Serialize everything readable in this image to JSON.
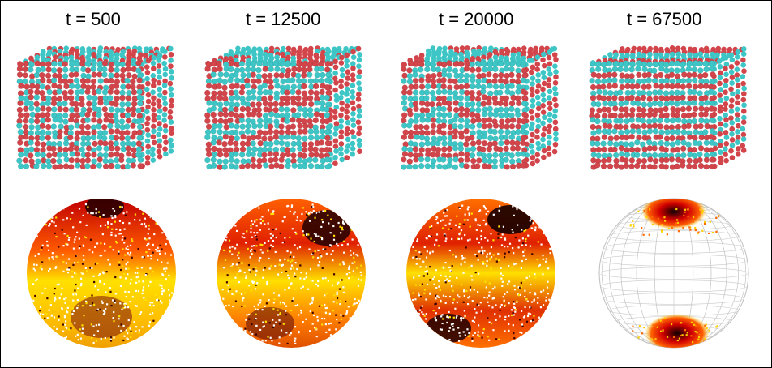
{
  "panels": [
    {
      "time_label": "t = 500",
      "structure": "disordered",
      "cube_icon": "particle-cube-disordered",
      "sphere_icon": "orientation-sphere-broad"
    },
    {
      "time_label": "t = 12500",
      "structure": "early-stripes",
      "cube_icon": "particle-cube-early-stripes",
      "sphere_icon": "orientation-sphere-emerging"
    },
    {
      "time_label": "t = 20000",
      "structure": "curved-stripes",
      "cube_icon": "particle-cube-curved-stripes",
      "sphere_icon": "orientation-sphere-focusing"
    },
    {
      "time_label": "t = 67500",
      "structure": "lamellar",
      "cube_icon": "particle-cube-lamellar",
      "sphere_icon": "orientation-sphere-poles"
    }
  ],
  "colors": {
    "particle_red": "#d2454b",
    "particle_cyan": "#3ec6c6",
    "heat_dark": "#1a0000",
    "heat_red": "#d10000",
    "heat_orange": "#ff8000",
    "heat_yellow": "#ffe600",
    "mesh_gray": "#c8c8c8"
  }
}
